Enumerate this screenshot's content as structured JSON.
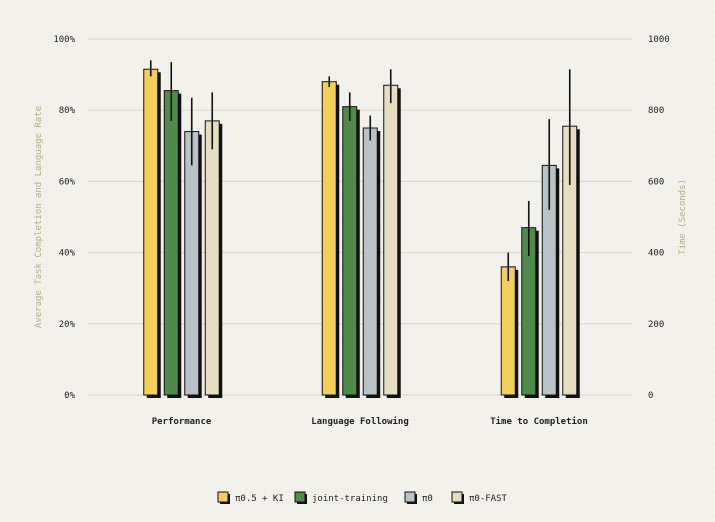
{
  "chart_data": {
    "type": "bar",
    "categories": [
      "Performance",
      "Language Following",
      "Time to Completion"
    ],
    "series": [
      {
        "name": "π0.5 + KI",
        "color": "#f2cf5a",
        "values": [
          91.5,
          88,
          360
        ],
        "err_low": [
          89.5,
          86.5,
          320
        ],
        "err_high": [
          94,
          89.5,
          400
        ]
      },
      {
        "name": "joint-training",
        "color": "#4f8a4b",
        "values": [
          85.5,
          81,
          470
        ],
        "err_low": [
          77,
          77,
          390
        ],
        "err_high": [
          93.5,
          85,
          545
        ]
      },
      {
        "name": "π0",
        "color": "#b9c2c6",
        "values": [
          74,
          75,
          645
        ],
        "err_low": [
          64.5,
          71.5,
          520
        ],
        "err_high": [
          83.5,
          78.5,
          775
        ]
      },
      {
        "name": "π0-FAST",
        "color": "#e5dcc2",
        "values": [
          77,
          87,
          755
        ],
        "err_low": [
          69,
          82,
          590
        ],
        "err_high": [
          85,
          91.5,
          915
        ]
      }
    ],
    "axis_mapping": [
      "left",
      "left",
      "right"
    ],
    "ylabel_left": "Average Task Completion and Language Rate",
    "ylabel_right": "Time (Seconds)",
    "ylim_left": [
      0,
      100
    ],
    "ylim_right": [
      0,
      1000
    ],
    "yticks_left": [
      "0%",
      "20%",
      "40%",
      "60%",
      "80%",
      "100%"
    ],
    "yticks_right": [
      "0",
      "200",
      "400",
      "600",
      "800",
      "1000"
    ],
    "grid": true,
    "legend_position": "bottom-center"
  }
}
